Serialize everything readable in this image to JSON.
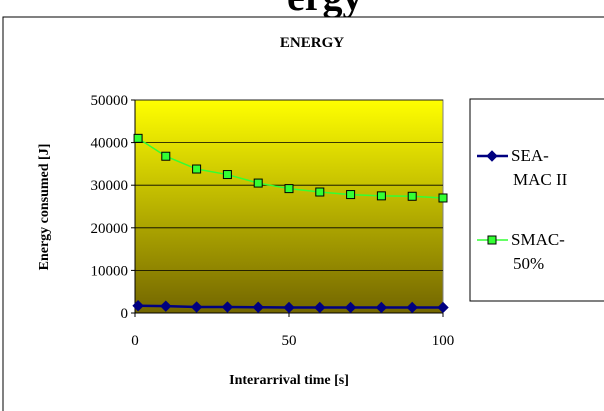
{
  "page_heading_fragment": "ergy",
  "chart_data": {
    "type": "line",
    "title": "ENERGY",
    "xlabel": "Interarrival time [s]",
    "ylabel": "Energy consumed [J]",
    "xlim": [
      0,
      100
    ],
    "ylim": [
      0,
      50000
    ],
    "x_ticks": [
      0,
      50,
      100
    ],
    "y_ticks": [
      0,
      10000,
      20000,
      30000,
      40000,
      50000
    ],
    "grid": "horizontal",
    "legend_position": "right",
    "x": [
      1,
      10,
      20,
      30,
      40,
      50,
      60,
      70,
      80,
      90,
      100
    ],
    "series": [
      {
        "name": "SEA-MAC II",
        "legend_lines": [
          "SEA-",
          "MAC II"
        ],
        "color": "#000080",
        "marker": "diamond",
        "values": [
          1700,
          1600,
          1400,
          1400,
          1350,
          1300,
          1300,
          1300,
          1300,
          1300,
          1300
        ]
      },
      {
        "name": "SMAC-50%",
        "legend_lines": [
          "SMAC-",
          "50%"
        ],
        "color": "#33ff33",
        "marker": "square",
        "values": [
          41000,
          36800,
          33800,
          32500,
          30500,
          29200,
          28400,
          27800,
          27500,
          27400,
          27000
        ]
      }
    ],
    "colors": {
      "plot_gradient_top": "#ffff00",
      "plot_gradient_bottom": "#736600"
    }
  }
}
